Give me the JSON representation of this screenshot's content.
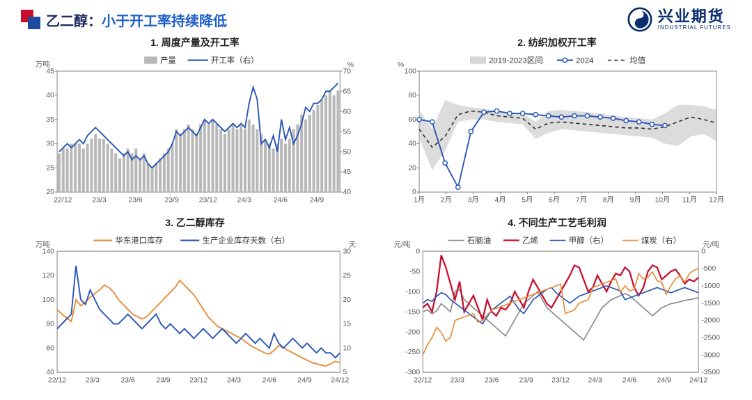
{
  "header": {
    "title_prefix": "乙二醇：",
    "title_suffix": "小于开工率持续降低",
    "logo_cn": "兴业期货",
    "logo_en": "INDUSTRIAL FUTURES"
  },
  "colors": {
    "red": "#c8102e",
    "blue_brand": "#1e4a9e",
    "blue_line": "#2754b5",
    "orange": "#e88b3a",
    "gray_bar": "#b8b8b8",
    "gray_band": "#c4c4c4",
    "gray_line": "#8a8a8a",
    "black_dash": "#2b2b2b",
    "grid": "#dcdcdc",
    "axis": "#888"
  },
  "chart1": {
    "title": "1. 周度产量及开工率",
    "left_unit": "万吨",
    "right_unit": "%",
    "legend": {
      "bar": "产量",
      "line": "开工率（右）"
    },
    "x_labels": [
      "22/12",
      "23/3",
      "23/6",
      "23/9",
      "23/12",
      "24/3",
      "24/6",
      "24/9"
    ],
    "y_left": {
      "min": 20,
      "max": 45,
      "step": 5
    },
    "y_right": {
      "min": 40,
      "max": 70,
      "step": 5
    },
    "bars": [
      28,
      29,
      29,
      30,
      30,
      30,
      29,
      30,
      31,
      32,
      31,
      31,
      30,
      29,
      28,
      27,
      28,
      29,
      28,
      29,
      27,
      28,
      26,
      25,
      26,
      27,
      28,
      29,
      30,
      33,
      32,
      33,
      34,
      33,
      32,
      34,
      35,
      34,
      35,
      34,
      33,
      32,
      33,
      34,
      33,
      34,
      33,
      35,
      34,
      33,
      32,
      31,
      30,
      29,
      30,
      31,
      30,
      31,
      33,
      34,
      36,
      35,
      36,
      37,
      38,
      39,
      40,
      41,
      40,
      41
    ],
    "line": [
      50,
      51,
      52,
      51,
      52,
      53,
      52,
      54,
      55,
      56,
      55,
      54,
      53,
      52,
      51,
      50,
      49,
      50,
      48,
      49,
      48,
      49,
      47,
      46,
      47,
      48,
      49,
      50,
      52,
      55,
      54,
      55,
      56,
      55,
      54,
      56,
      58,
      57,
      58,
      57,
      56,
      55,
      56,
      57,
      56,
      57,
      56,
      62,
      66,
      63,
      52,
      53,
      51,
      54,
      50,
      58,
      53,
      56,
      52,
      54,
      57,
      61,
      60,
      62,
      62,
      63,
      65,
      65,
      66,
      67
    ]
  },
  "chart2": {
    "title": "2. 纺织加权开工率",
    "unit": "%",
    "legend": {
      "band": "2019-2023区间",
      "line": "2024",
      "dash": "均值"
    },
    "x_labels": [
      "1月",
      "2月",
      "3月",
      "4月",
      "5月",
      "6月",
      "7月",
      "8月",
      "9月",
      "10月",
      "11月",
      "12月"
    ],
    "y": {
      "min": 0,
      "max": 100,
      "step": 20
    },
    "band_upper": [
      68,
      52,
      76,
      72,
      70,
      69,
      67,
      66,
      65,
      58,
      67,
      68,
      67,
      66,
      65,
      63,
      62,
      61,
      60,
      65,
      72,
      72,
      71,
      68
    ],
    "band_lower": [
      45,
      18,
      34,
      58,
      60,
      60,
      58,
      57,
      56,
      44,
      49,
      52,
      51,
      50,
      49,
      48,
      47,
      46,
      45,
      40,
      38,
      46,
      48,
      42
    ],
    "dash_line": [
      52,
      37,
      46,
      64,
      67,
      66,
      63,
      62,
      61,
      52,
      57,
      58,
      57,
      56,
      55,
      54,
      53,
      53,
      52,
      54,
      58,
      62,
      60,
      57
    ],
    "line_2024": [
      60,
      58,
      24,
      4,
      50,
      66,
      67,
      65,
      65,
      64,
      63,
      62,
      63,
      63,
      62,
      61,
      59,
      58,
      56,
      55
    ]
  },
  "chart3": {
    "title": "3. 乙二醇库存",
    "left_unit": "万吨",
    "right_unit": "天",
    "legend": {
      "orange": "华东港口库存",
      "blue": "生产企业库存天数（右）"
    },
    "x_labels": [
      "22/12",
      "23/3",
      "23/6",
      "23/9",
      "23/12",
      "24/3",
      "24/6",
      "24/9",
      "24/12"
    ],
    "y_left": {
      "min": 40,
      "max": 140,
      "step": 20
    },
    "y_right": {
      "min": 5,
      "max": 30,
      "step": 5
    },
    "orange_line": [
      92,
      88,
      85,
      82,
      100,
      95,
      98,
      102,
      105,
      108,
      112,
      110,
      106,
      100,
      96,
      92,
      88,
      86,
      84,
      86,
      90,
      94,
      98,
      102,
      106,
      110,
      116,
      112,
      108,
      104,
      98,
      92,
      86,
      82,
      78,
      76,
      74,
      72,
      70,
      68,
      65,
      62,
      60,
      58,
      56,
      55,
      58,
      62,
      60,
      58,
      56,
      54,
      52,
      50,
      48,
      47,
      46,
      45,
      47,
      49,
      48
    ],
    "blue_line": [
      14,
      15,
      16,
      17,
      27,
      20,
      19,
      22,
      20,
      18,
      17,
      16,
      15,
      15,
      16,
      17,
      16,
      15,
      14,
      15,
      16,
      17,
      15,
      14,
      15,
      14,
      13,
      14,
      13,
      12,
      13,
      14,
      13,
      12,
      13,
      14,
      13,
      12,
      11,
      12,
      13,
      12,
      11,
      12,
      11,
      10,
      13,
      11,
      10,
      11,
      12,
      11,
      10,
      11,
      10,
      9,
      10,
      9,
      9,
      8,
      9
    ]
  },
  "chart4": {
    "title": "4. 不同生产工艺毛利润",
    "left_unit": "元/吨",
    "right_unit": "元/吨",
    "legend": {
      "gray": "石脑油",
      "red": "乙烯",
      "blue": "甲醇（右）",
      "orange": "煤炭（右）"
    },
    "x_labels": [
      "22/12",
      "23/3",
      "23/6",
      "23/9",
      "23/12",
      "24/3",
      "24/6",
      "24/9",
      "24/12"
    ],
    "y_left": {
      "min": -300,
      "max": 0,
      "step": 50
    },
    "y_right": {
      "min": -3500,
      "max": 0,
      "step": 500
    },
    "gray": [
      -150,
      -145,
      -155,
      -148,
      -130,
      -140,
      -150,
      -100,
      -95,
      -120,
      -130,
      -140,
      -150,
      -160,
      -170,
      -180,
      -190,
      -200,
      -210,
      -190,
      -170,
      -150,
      -130,
      -120,
      -110,
      -100,
      -120,
      -140,
      -150,
      -160,
      -170,
      -180,
      -190,
      -200,
      -210,
      -220,
      -200,
      -180,
      -160,
      -140,
      -130,
      -120,
      -115,
      -110,
      -105,
      -110,
      -120,
      -130,
      -140,
      -150,
      -160,
      -150,
      -140,
      -135,
      -130,
      -128,
      -125,
      -122,
      -120,
      -118,
      -115
    ],
    "red": [
      -140,
      -130,
      -150,
      -100,
      -10,
      -40,
      -80,
      -120,
      -75,
      -150,
      -130,
      -110,
      -140,
      -170,
      -120,
      -150,
      -160,
      -140,
      -145,
      -130,
      -100,
      -120,
      -140,
      -100,
      -70,
      -90,
      -110,
      -130,
      -140,
      -120,
      -100,
      -80,
      -60,
      -35,
      -40,
      -70,
      -100,
      -90,
      -60,
      -80,
      -100,
      -75,
      -55,
      -60,
      -40,
      -50,
      -90,
      -110,
      -90,
      -50,
      -35,
      -40,
      -70,
      -60,
      -50,
      -45,
      -60,
      -80,
      -70,
      -75,
      -65
    ],
    "blue": [
      -1500,
      -1400,
      -1450,
      -1300,
      -1200,
      -1250,
      -1400,
      -1500,
      -1600,
      -1700,
      -1800,
      -1900,
      -2000,
      -2100,
      -1900,
      -1700,
      -1600,
      -1500,
      -1400,
      -1300,
      -1500,
      -1700,
      -1800,
      -1600,
      -1400,
      -1300,
      -1200,
      -1100,
      -1050,
      -1200,
      -1300,
      -1400,
      -1500,
      -1400,
      -1300,
      -1250,
      -1200,
      -1150,
      -1100,
      -1050,
      -1000,
      -1050,
      -1100,
      -1150,
      -1400,
      -1350,
      -1300,
      -1250,
      -1200,
      -1150,
      -1100,
      -1050,
      -1100,
      -1150,
      -1200,
      -1150,
      -1100,
      -1050,
      -1100,
      -1150,
      -1200
    ],
    "orange": [
      -3000,
      -2700,
      -2500,
      -2200,
      -2350,
      -2600,
      -2500,
      -2000,
      -1950,
      -1900,
      -1850,
      -1800,
      -2050,
      -2000,
      -1850,
      -1700,
      -1650,
      -1600,
      -1550,
      -1500,
      -1450,
      -1400,
      -1350,
      -1300,
      -1250,
      -1200,
      -1150,
      -1100,
      -1050,
      -1000,
      -950,
      -1800,
      -1750,
      -1700,
      -1500,
      -1450,
      -1400,
      -1050,
      -1000,
      -950,
      -900,
      -850,
      -800,
      -1200,
      -1000,
      -1150,
      -1100,
      -650,
      -800,
      -750,
      -600,
      -850,
      -900,
      -1250,
      -1000,
      -800,
      -700,
      -900,
      -650,
      -550,
      -500
    ]
  }
}
